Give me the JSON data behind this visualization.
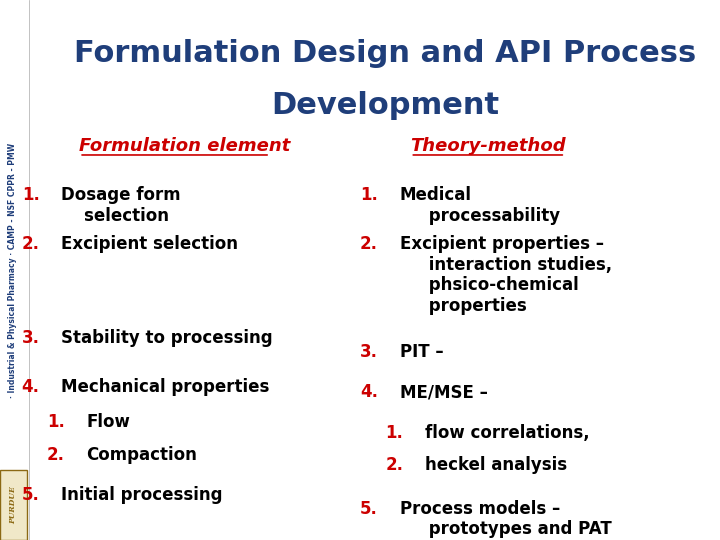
{
  "title_line1": "Formulation Design and API Process",
  "title_line2": "Development",
  "title_color": "#1F3E7A",
  "title_fontsize": 22,
  "bg_color": "#FFFFFF",
  "sidebar_color": "#1F3E7A",
  "sidebar_text": "· Industrial & Physical Pharmacy · CAMP - NSF CPPR - PMW",
  "purdue_color": "#8B6914",
  "left_header": "Formulation element",
  "right_header": "Theory-method",
  "header_color": "#CC0000",
  "header_fontsize": 13,
  "number_color": "#CC0000",
  "text_color": "#000000",
  "item_fontsize": 12,
  "left_items": [
    {
      "num": "1.",
      "text": "Dosage form\n    selection",
      "indent": 0
    },
    {
      "num": "2.",
      "text": "Excipient selection",
      "indent": 0
    },
    {
      "num": "3.",
      "text": "Stability to processing",
      "indent": 0
    },
    {
      "num": "4.",
      "text": "Mechanical properties",
      "indent": 0
    },
    {
      "num": "1.",
      "text": "Flow",
      "indent": 1
    },
    {
      "num": "2.",
      "text": "Compaction",
      "indent": 1
    },
    {
      "num": "5.",
      "text": "Initial processing",
      "indent": 0
    }
  ],
  "right_items": [
    {
      "num": "1.",
      "text": "Medical\n     processability",
      "indent": 0
    },
    {
      "num": "2.",
      "text": "Excipient properties –\n     interaction studies,\n     phsico-chemical\n     properties",
      "indent": 0
    },
    {
      "num": "3.",
      "text": "PIT –",
      "indent": 0
    },
    {
      "num": "4.",
      "text": "ME/MSE –",
      "indent": 0
    },
    {
      "num": "1.",
      "text": "flow correlations,",
      "indent": 1
    },
    {
      "num": "2.",
      "text": "heckel analysis",
      "indent": 1
    },
    {
      "num": "5.",
      "text": "Process models –\n     prototypes and PAT",
      "indent": 0
    }
  ]
}
